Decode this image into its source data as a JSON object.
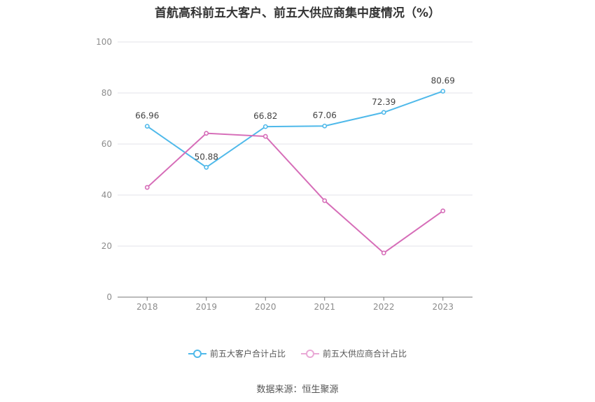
{
  "chart_data": {
    "type": "line",
    "title": "首航高科前五大客户、前五大供应商集中度情况（%）",
    "categories": [
      "2018",
      "2019",
      "2020",
      "2021",
      "2022",
      "2023"
    ],
    "ylim": [
      0,
      100
    ],
    "yticks": [
      "0",
      "20",
      "40",
      "60",
      "80",
      "100"
    ],
    "grid": true,
    "legend_position": "bottom",
    "series": [
      {
        "name": "前五大客户合计占比",
        "color": "#4fb9ea",
        "values": [
          66.96,
          50.88,
          66.82,
          67.06,
          72.39,
          80.69
        ],
        "labels": [
          "66.96",
          "50.88",
          "66.82",
          "67.06",
          "72.39",
          "80.69"
        ]
      },
      {
        "name": "前五大供应商合计占比",
        "color": "#d66db8",
        "values": [
          43.0,
          64.2,
          63.0,
          37.8,
          17.3,
          33.8
        ],
        "labels": []
      }
    ],
    "source": "数据来源：恒生聚源"
  }
}
